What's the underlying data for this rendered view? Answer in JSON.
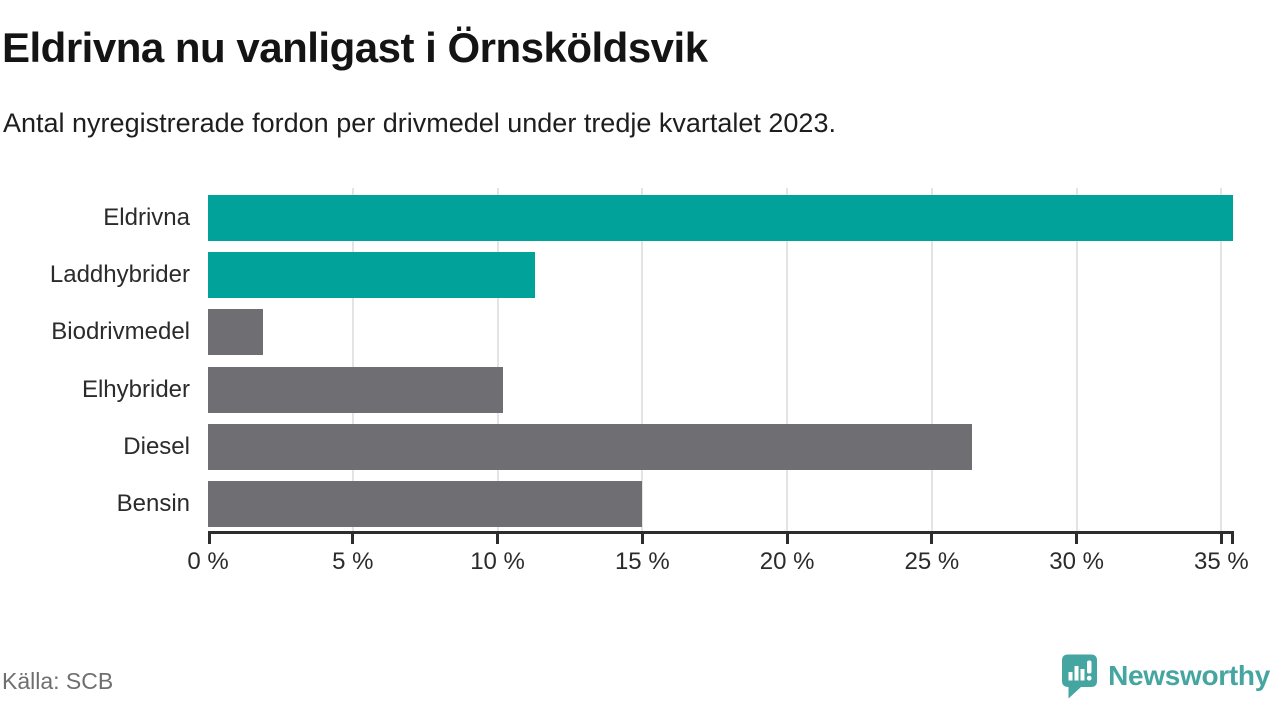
{
  "header": {
    "title": "Eldrivna nu vanligast i Örnsköldsvik",
    "subtitle": "Antal nyregistrerade fordon per drivmedel under tredje kvartalet 2023."
  },
  "chart_data": {
    "type": "bar",
    "orientation": "horizontal",
    "title": "Eldrivna nu vanligast i Örnsköldsvik",
    "subtitle": "Antal nyregistrerade fordon per drivmedel under tredje kvartalet 2023.",
    "categories": [
      "Eldrivna",
      "Laddhybrider",
      "Biodrivmedel",
      "Elhybrider",
      "Diesel",
      "Bensin"
    ],
    "values": [
      35.4,
      11.3,
      1.9,
      10.2,
      26.4,
      15
    ],
    "unit": "%",
    "xlim": [
      0,
      35.4
    ],
    "grid": true,
    "legend": "none",
    "ticks": [
      {
        "value": 0,
        "label": "0 %"
      },
      {
        "value": 5,
        "label": "5 %"
      },
      {
        "value": 10,
        "label": "10 %"
      },
      {
        "value": 15,
        "label": "15 %"
      },
      {
        "value": 20,
        "label": "20 %"
      },
      {
        "value": 25,
        "label": "25 %"
      },
      {
        "value": 30,
        "label": "30 %"
      },
      {
        "value": 35,
        "label": "35 %"
      }
    ],
    "bar_colors": [
      "#00a29a",
      "#00a29a",
      "#6e6e73",
      "#6e6e73",
      "#6e6e73",
      "#6e6e73"
    ],
    "highlight_color": "#00a29a",
    "default_color": "#6e6e73"
  },
  "footer": {
    "source": "Källa: SCB",
    "brand": {
      "name": "Newsworthy",
      "icon": "newsworthy-chart-bubble-icon",
      "color": "#45a5a0"
    }
  },
  "colors": {
    "accent": "#00a29a",
    "bar_gray": "#6e6e73",
    "axis": "#2d2d2d",
    "grid": "#e4e4e4",
    "text": "#2b2b2b",
    "muted_text": "#6f6f6f",
    "brand_teal": "#45a5a0"
  }
}
